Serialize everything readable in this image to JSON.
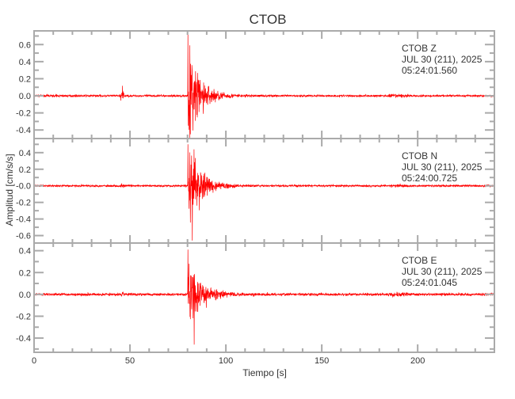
{
  "chart_data": {
    "type": "line",
    "title": "CTOB",
    "xlabel": "Tiempo [s]",
    "ylabel": "Amplitud [cm/s/s]",
    "xlim": [
      0,
      240
    ],
    "xticks": [
      0,
      50,
      100,
      150,
      200
    ],
    "grid": false,
    "line_color": "#ff0000",
    "panels": [
      {
        "station": "CTOB",
        "component": "Z",
        "date": "JUL 30 (211), 2025",
        "time": "05:24:01.560",
        "ylim": [
          -0.5,
          0.76
        ],
        "yticks": [
          -0.4,
          -0.2,
          0.0,
          0.2,
          0.4,
          0.6
        ],
        "ytick_labels": [
          "-0.4",
          "-0.2",
          "0.0",
          "0.2",
          "0.4",
          "0.6"
        ],
        "onset_s": 80,
        "peak_max": 0.72,
        "peak_min": -0.45,
        "precursor_s": 46,
        "precursor_amp": 0.09
      },
      {
        "station": "CTOB",
        "component": "N",
        "date": "JUL 30 (211), 2025",
        "time": "05:24:00.725",
        "ylim": [
          -0.69,
          0.57
        ],
        "yticks": [
          -0.6,
          -0.4,
          -0.2,
          0.0,
          0.2,
          0.4
        ],
        "ytick_labels": [
          "-0.6",
          "-0.4",
          "-0.2",
          "-0.0",
          "0.2",
          "0.4"
        ],
        "onset_s": 80,
        "peak_max": 0.5,
        "peak_min": -0.66,
        "precursor_s": 46,
        "precursor_amp": 0.02
      },
      {
        "station": "CTOB",
        "component": "E",
        "date": "JUL 30 (211), 2025",
        "time": "05:24:01.045",
        "ylim": [
          -0.53,
          0.47
        ],
        "yticks": [
          -0.4,
          -0.2,
          0.0,
          0.2,
          0.4
        ],
        "ytick_labels": [
          "-0.4",
          "-0.2",
          "0.0",
          "0.2",
          "0.4"
        ],
        "onset_s": 80,
        "peak_max": 0.41,
        "peak_min": -0.46,
        "precursor_s": 46,
        "precursor_amp": 0.02
      }
    ]
  }
}
